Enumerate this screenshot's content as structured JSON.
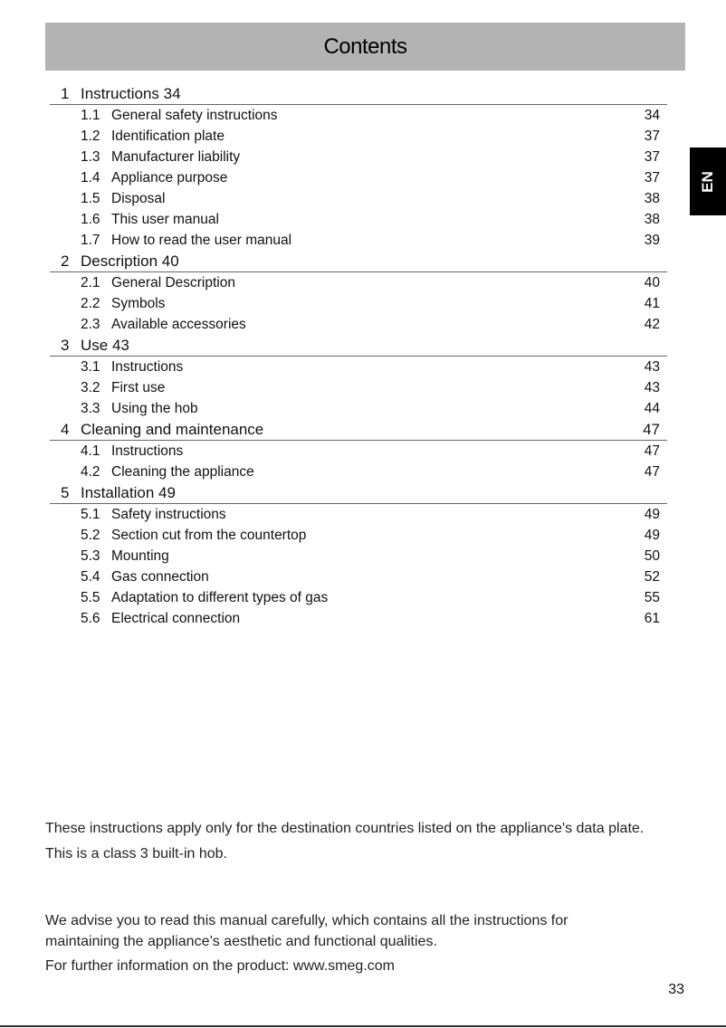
{
  "header": {
    "title": "Contents"
  },
  "language_tab": "EN",
  "sections": [
    {
      "num": "1",
      "title": "Instructions 34",
      "page": "",
      "items": [
        {
          "num": "1.1",
          "title": "General safety instructions",
          "page": "34"
        },
        {
          "num": "1.2",
          "title": "Identification plate",
          "page": "37"
        },
        {
          "num": "1.3",
          "title": "Manufacturer liability",
          "page": "37"
        },
        {
          "num": "1.4",
          "title": "Appliance purpose",
          "page": "37"
        },
        {
          "num": "1.5",
          "title": "Disposal",
          "page": "38"
        },
        {
          "num": "1.6",
          "title": "This user manual",
          "page": "38"
        },
        {
          "num": "1.7",
          "title": "How to read the user manual",
          "page": "39"
        }
      ]
    },
    {
      "num": "2",
      "title": "Description 40",
      "page": "",
      "items": [
        {
          "num": "2.1",
          "title": "General Description",
          "page": "40"
        },
        {
          "num": "2.2",
          "title": "Symbols",
          "page": "41"
        },
        {
          "num": "2.3",
          "title": "Available accessories",
          "page": "42"
        }
      ]
    },
    {
      "num": "3",
      "title": "Use 43",
      "page": "",
      "items": [
        {
          "num": "3.1",
          "title": "Instructions",
          "page": "43"
        },
        {
          "num": "3.2",
          "title": "First use",
          "page": "43"
        },
        {
          "num": "3.3",
          "title": "Using the hob",
          "page": "44"
        }
      ]
    },
    {
      "num": "4",
      "title": "Cleaning and maintenance",
      "page": "47",
      "items": [
        {
          "num": "4.1",
          "title": "Instructions",
          "page": "47"
        },
        {
          "num": "4.2",
          "title": "Cleaning the appliance",
          "page": "47"
        }
      ]
    },
    {
      "num": "5",
      "title": "Installation 49",
      "page": "",
      "items": [
        {
          "num": "5.1",
          "title": "Safety instructions",
          "page": "49"
        },
        {
          "num": "5.2",
          "title": "Section cut from the countertop",
          "page": "49"
        },
        {
          "num": "5.3",
          "title": "Mounting",
          "page": "50"
        },
        {
          "num": "5.4",
          "title": "Gas connection",
          "page": "52"
        },
        {
          "num": "5.5",
          "title": "Adaptation to different types of gas",
          "page": "55"
        },
        {
          "num": "5.6",
          "title": "Electrical connection",
          "page": "61"
        }
      ]
    }
  ],
  "footer": {
    "line1": "These instructions apply only for the destination countries listed on the appliance's data plate.",
    "line2": "This is a class 3 built-in hob.",
    "line3": "We advise you to read this manual carefully, which contains all the instructions for",
    "line4": "maintaining the appliance’s aesthetic and functional qualities.",
    "line5": "For further information on the product: www.smeg.com",
    "page_number": "33"
  }
}
